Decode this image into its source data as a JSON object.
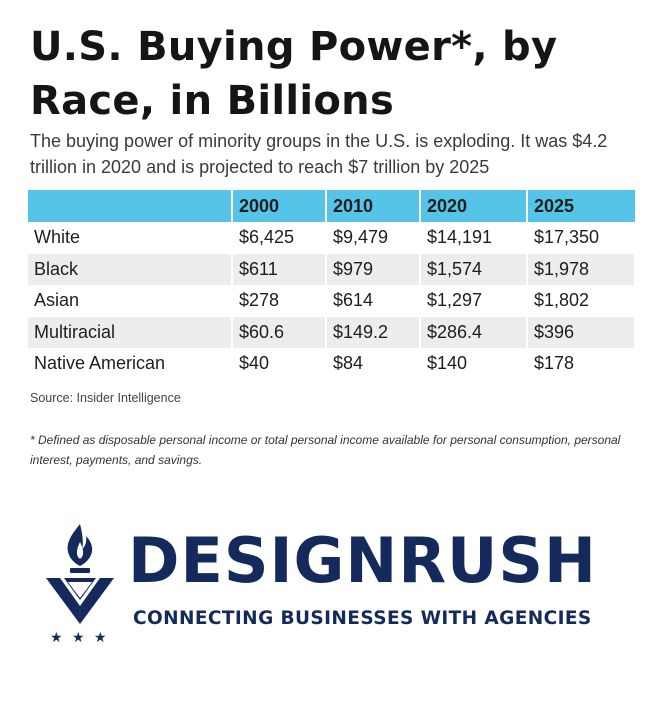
{
  "title_line1": "U.S. Buying Power*, by",
  "title_line2": "Race, in Billions",
  "subtitle": "The buying power of minority groups in the U.S. is exploding. It was $4.2 trillion in 2020 and is projected to reach $7 trillion by 2025",
  "source": "Source: Insider Intelligence",
  "footnote": "* Defined as disposable personal income or total personal income available for personal consumption, personal interest, payments, and savings.",
  "brand": {
    "name": "DESIGNRUSH",
    "tagline": "CONNECTING BUSINESSES WITH AGENCIES",
    "color": "#152a5c",
    "icon": "designrush-logo-icon"
  },
  "colors": {
    "header_bg": "#55c4e8",
    "stripe_bg": "#ededed"
  },
  "chart_data": {
    "type": "table",
    "columns": [
      "",
      "2000",
      "2010",
      "2020",
      "2025"
    ],
    "rows": [
      {
        "label": "White",
        "values": [
          "$6,425",
          "$9,479",
          "$14,191",
          "$17,350"
        ]
      },
      {
        "label": "Black",
        "values": [
          "$611",
          "$979",
          "$1,574",
          "$1,978"
        ]
      },
      {
        "label": "Asian",
        "values": [
          "$278",
          "$614",
          "$1,297",
          "$1,802"
        ]
      },
      {
        "label": "Multiracial",
        "values": [
          "$60.6",
          "$149.2",
          "$286.4",
          "$396"
        ]
      },
      {
        "label": "Native American",
        "values": [
          "$40",
          "$84",
          "$140",
          "$178"
        ]
      }
    ]
  }
}
